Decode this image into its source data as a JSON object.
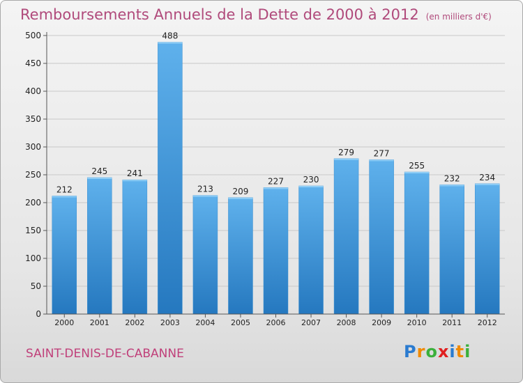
{
  "header": {
    "title": "Remboursements Annuels de la Dette de 2000 à 2012",
    "unit": "(en milliers d'€)"
  },
  "commune": "SAINT-DENIS-DE-CABANNE",
  "logo": {
    "text": "Proxiti",
    "letters": [
      "P",
      "r",
      "o",
      "x",
      "i",
      "t",
      "i"
    ],
    "colors": [
      "#2a7bd0",
      "#f08a00",
      "#3bb03b",
      "#e02020",
      "#2a7bd0",
      "#f08a00",
      "#3bb03b"
    ]
  },
  "chart_data": {
    "type": "bar",
    "categories": [
      "2000",
      "2001",
      "2002",
      "2003",
      "2004",
      "2005",
      "2006",
      "2007",
      "2008",
      "2009",
      "2010",
      "2011",
      "2012"
    ],
    "values": [
      212,
      245,
      241,
      488,
      213,
      209,
      227,
      230,
      279,
      277,
      255,
      232,
      234
    ],
    "title": "Remboursements Annuels de la Dette de 2000 à 2012",
    "unit": "(en milliers d'€)",
    "xlabel": "",
    "ylabel": "",
    "ylim": [
      0,
      500
    ],
    "yticks": [
      0,
      50,
      100,
      150,
      200,
      250,
      300,
      350,
      400,
      450,
      500
    ],
    "grid": true,
    "bar_color": "#4a9fdf"
  }
}
